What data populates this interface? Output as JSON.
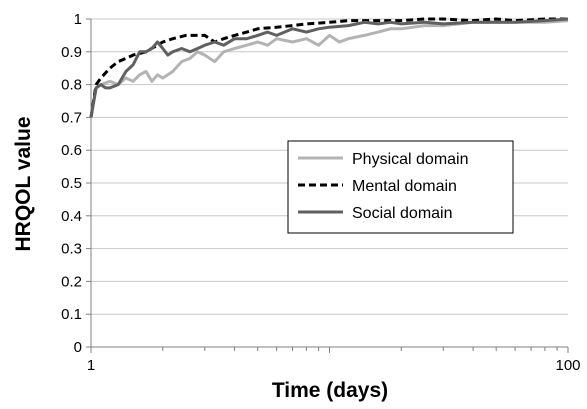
{
  "chart_data": {
    "type": "line",
    "title": "",
    "xlabel": "Time (days)",
    "ylabel": "HRQOL value",
    "x_scale": "log",
    "xlim": [
      1,
      100
    ],
    "ylim": [
      0,
      1
    ],
    "x_ticks": [
      1,
      100
    ],
    "x_tick_labels": [
      "1",
      "100"
    ],
    "y_ticks": [
      0,
      0.1,
      0.2,
      0.3,
      0.4,
      0.5,
      0.6,
      0.7,
      0.8,
      0.9,
      1
    ],
    "y_tick_labels": [
      "0",
      "0.1",
      "0.2",
      "0.3",
      "0.4",
      "0.5",
      "0.6",
      "0.7",
      "0.8",
      "0.9",
      "1"
    ],
    "grid": "horizontal",
    "legend_position": "center-right",
    "series": [
      {
        "name": "Physical domain",
        "color": "#b3b3b3",
        "style": "solid",
        "points": [
          [
            1,
            0.7
          ],
          [
            1.05,
            0.79
          ],
          [
            1.1,
            0.8
          ],
          [
            1.2,
            0.81
          ],
          [
            1.3,
            0.8
          ],
          [
            1.4,
            0.82
          ],
          [
            1.5,
            0.81
          ],
          [
            1.6,
            0.83
          ],
          [
            1.7,
            0.84
          ],
          [
            1.8,
            0.81
          ],
          [
            1.9,
            0.83
          ],
          [
            2,
            0.82
          ],
          [
            2.2,
            0.84
          ],
          [
            2.4,
            0.87
          ],
          [
            2.6,
            0.88
          ],
          [
            2.8,
            0.9
          ],
          [
            3,
            0.89
          ],
          [
            3.3,
            0.87
          ],
          [
            3.6,
            0.9
          ],
          [
            4,
            0.91
          ],
          [
            4.5,
            0.92
          ],
          [
            5,
            0.93
          ],
          [
            5.5,
            0.92
          ],
          [
            6,
            0.94
          ],
          [
            7,
            0.93
          ],
          [
            8,
            0.94
          ],
          [
            9,
            0.92
          ],
          [
            10,
            0.95
          ],
          [
            11,
            0.93
          ],
          [
            12,
            0.94
          ],
          [
            14,
            0.95
          ],
          [
            16,
            0.96
          ],
          [
            18,
            0.97
          ],
          [
            20,
            0.97
          ],
          [
            25,
            0.98
          ],
          [
            30,
            0.98
          ],
          [
            40,
            0.99
          ],
          [
            50,
            0.99
          ],
          [
            60,
            0.99
          ],
          [
            80,
            0.99
          ],
          [
            100,
            0.995
          ]
        ]
      },
      {
        "name": "Mental domain",
        "color": "#000000",
        "style": "dashed",
        "points": [
          [
            1,
            0.7
          ],
          [
            1.05,
            0.8
          ],
          [
            1.1,
            0.82
          ],
          [
            1.2,
            0.85
          ],
          [
            1.3,
            0.87
          ],
          [
            1.4,
            0.88
          ],
          [
            1.5,
            0.89
          ],
          [
            1.7,
            0.9
          ],
          [
            2,
            0.93
          ],
          [
            2.2,
            0.94
          ],
          [
            2.5,
            0.95
          ],
          [
            3,
            0.95
          ],
          [
            3.3,
            0.93
          ],
          [
            3.6,
            0.94
          ],
          [
            4,
            0.95
          ],
          [
            4.5,
            0.96
          ],
          [
            5,
            0.97
          ],
          [
            6,
            0.975
          ],
          [
            7,
            0.98
          ],
          [
            8,
            0.985
          ],
          [
            10,
            0.99
          ],
          [
            12,
            0.995
          ],
          [
            15,
            0.995
          ],
          [
            20,
            0.995
          ],
          [
            25,
            1
          ],
          [
            30,
            1
          ],
          [
            40,
            0.995
          ],
          [
            50,
            1
          ],
          [
            60,
            0.995
          ],
          [
            80,
            1
          ],
          [
            100,
            1
          ]
        ]
      },
      {
        "name": "Social domain",
        "color": "#606060",
        "style": "solid",
        "points": [
          [
            1,
            0.7
          ],
          [
            1.05,
            0.79
          ],
          [
            1.1,
            0.8
          ],
          [
            1.15,
            0.79
          ],
          [
            1.2,
            0.79
          ],
          [
            1.3,
            0.8
          ],
          [
            1.4,
            0.84
          ],
          [
            1.5,
            0.86
          ],
          [
            1.6,
            0.9
          ],
          [
            1.7,
            0.9
          ],
          [
            1.8,
            0.91
          ],
          [
            1.9,
            0.93
          ],
          [
            2,
            0.91
          ],
          [
            2.1,
            0.89
          ],
          [
            2.2,
            0.9
          ],
          [
            2.4,
            0.91
          ],
          [
            2.6,
            0.9
          ],
          [
            2.8,
            0.91
          ],
          [
            3,
            0.92
          ],
          [
            3.3,
            0.93
          ],
          [
            3.6,
            0.92
          ],
          [
            4,
            0.94
          ],
          [
            4.5,
            0.94
          ],
          [
            5,
            0.95
          ],
          [
            5.5,
            0.96
          ],
          [
            6,
            0.95
          ],
          [
            7,
            0.97
          ],
          [
            8,
            0.96
          ],
          [
            9,
            0.97
          ],
          [
            10,
            0.975
          ],
          [
            12,
            0.98
          ],
          [
            14,
            0.99
          ],
          [
            16,
            0.985
          ],
          [
            18,
            0.99
          ],
          [
            20,
            0.985
          ],
          [
            25,
            0.99
          ],
          [
            30,
            0.985
          ],
          [
            40,
            0.99
          ],
          [
            50,
            0.99
          ],
          [
            60,
            0.99
          ],
          [
            80,
            0.995
          ],
          [
            100,
            1
          ]
        ]
      }
    ]
  }
}
